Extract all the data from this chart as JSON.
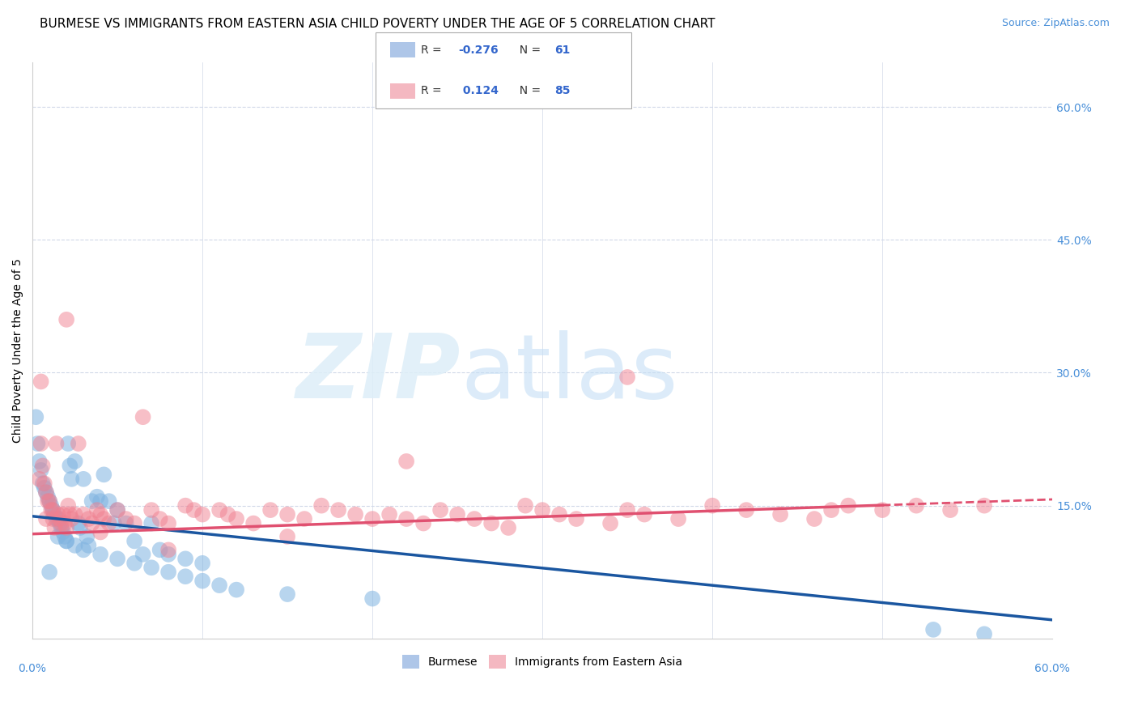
{
  "title": "BURMESE VS IMMIGRANTS FROM EASTERN ASIA CHILD POVERTY UNDER THE AGE OF 5 CORRELATION CHART",
  "source": "Source: ZipAtlas.com",
  "ylabel": "Child Poverty Under the Age of 5",
  "xlim": [
    0.0,
    0.6
  ],
  "ylim": [
    0.0,
    0.65
  ],
  "burmese_R": -0.276,
  "burmese_N": 61,
  "eastern_asia_R": 0.124,
  "eastern_asia_N": 85,
  "burmese_color": "#7fb3e0",
  "eastern_asia_color": "#f08090",
  "burmese_line_color": "#1a56a0",
  "eastern_asia_line_color": "#e05070",
  "watermark_zip": "ZIP",
  "watermark_atlas": "atlas",
  "background_color": "#ffffff",
  "grid_color": "#d0d8e8",
  "title_fontsize": 11,
  "axis_label_fontsize": 10,
  "tick_fontsize": 10,
  "burmese_intercept": 0.138,
  "burmese_slope": -0.195,
  "eastern_intercept": 0.118,
  "eastern_slope": 0.065,
  "burmese_x": [
    0.002,
    0.003,
    0.004,
    0.005,
    0.006,
    0.007,
    0.008,
    0.009,
    0.01,
    0.011,
    0.012,
    0.013,
    0.014,
    0.015,
    0.016,
    0.017,
    0.018,
    0.019,
    0.02,
    0.021,
    0.022,
    0.023,
    0.025,
    0.027,
    0.028,
    0.03,
    0.032,
    0.033,
    0.035,
    0.038,
    0.04,
    0.042,
    0.045,
    0.048,
    0.05,
    0.055,
    0.06,
    0.065,
    0.07,
    0.075,
    0.08,
    0.09,
    0.1,
    0.01,
    0.015,
    0.02,
    0.025,
    0.03,
    0.04,
    0.05,
    0.06,
    0.07,
    0.08,
    0.09,
    0.1,
    0.11,
    0.12,
    0.15,
    0.2,
    0.53,
    0.56
  ],
  "burmese_y": [
    0.25,
    0.22,
    0.2,
    0.19,
    0.175,
    0.17,
    0.165,
    0.16,
    0.155,
    0.15,
    0.145,
    0.14,
    0.135,
    0.135,
    0.13,
    0.125,
    0.12,
    0.115,
    0.11,
    0.22,
    0.195,
    0.18,
    0.2,
    0.13,
    0.125,
    0.18,
    0.115,
    0.105,
    0.155,
    0.16,
    0.155,
    0.185,
    0.155,
    0.13,
    0.145,
    0.13,
    0.11,
    0.095,
    0.13,
    0.1,
    0.095,
    0.09,
    0.085,
    0.075,
    0.115,
    0.11,
    0.105,
    0.1,
    0.095,
    0.09,
    0.085,
    0.08,
    0.075,
    0.07,
    0.065,
    0.06,
    0.055,
    0.05,
    0.045,
    0.01,
    0.005
  ],
  "eastern_x": [
    0.004,
    0.005,
    0.006,
    0.007,
    0.008,
    0.009,
    0.01,
    0.011,
    0.012,
    0.013,
    0.014,
    0.015,
    0.016,
    0.017,
    0.018,
    0.019,
    0.02,
    0.021,
    0.022,
    0.023,
    0.025,
    0.027,
    0.03,
    0.033,
    0.035,
    0.038,
    0.04,
    0.042,
    0.045,
    0.05,
    0.055,
    0.06,
    0.065,
    0.07,
    0.075,
    0.08,
    0.09,
    0.095,
    0.1,
    0.11,
    0.115,
    0.12,
    0.13,
    0.14,
    0.15,
    0.16,
    0.17,
    0.18,
    0.19,
    0.2,
    0.21,
    0.22,
    0.23,
    0.24,
    0.25,
    0.26,
    0.27,
    0.28,
    0.29,
    0.3,
    0.31,
    0.32,
    0.34,
    0.35,
    0.36,
    0.38,
    0.4,
    0.42,
    0.44,
    0.46,
    0.48,
    0.5,
    0.52,
    0.54,
    0.56,
    0.47,
    0.35,
    0.22,
    0.15,
    0.08,
    0.04,
    0.02,
    0.012,
    0.008,
    0.005
  ],
  "eastern_y": [
    0.18,
    0.22,
    0.195,
    0.175,
    0.165,
    0.155,
    0.155,
    0.145,
    0.135,
    0.125,
    0.22,
    0.14,
    0.135,
    0.13,
    0.14,
    0.13,
    0.125,
    0.15,
    0.14,
    0.135,
    0.14,
    0.22,
    0.14,
    0.135,
    0.13,
    0.145,
    0.14,
    0.135,
    0.13,
    0.145,
    0.135,
    0.13,
    0.25,
    0.145,
    0.135,
    0.13,
    0.15,
    0.145,
    0.14,
    0.145,
    0.14,
    0.135,
    0.13,
    0.145,
    0.14,
    0.135,
    0.15,
    0.145,
    0.14,
    0.135,
    0.14,
    0.135,
    0.13,
    0.145,
    0.14,
    0.135,
    0.13,
    0.125,
    0.15,
    0.145,
    0.14,
    0.135,
    0.13,
    0.145,
    0.14,
    0.135,
    0.15,
    0.145,
    0.14,
    0.135,
    0.15,
    0.145,
    0.15,
    0.145,
    0.15,
    0.145,
    0.295,
    0.2,
    0.115,
    0.1,
    0.12,
    0.36,
    0.145,
    0.135,
    0.29
  ]
}
